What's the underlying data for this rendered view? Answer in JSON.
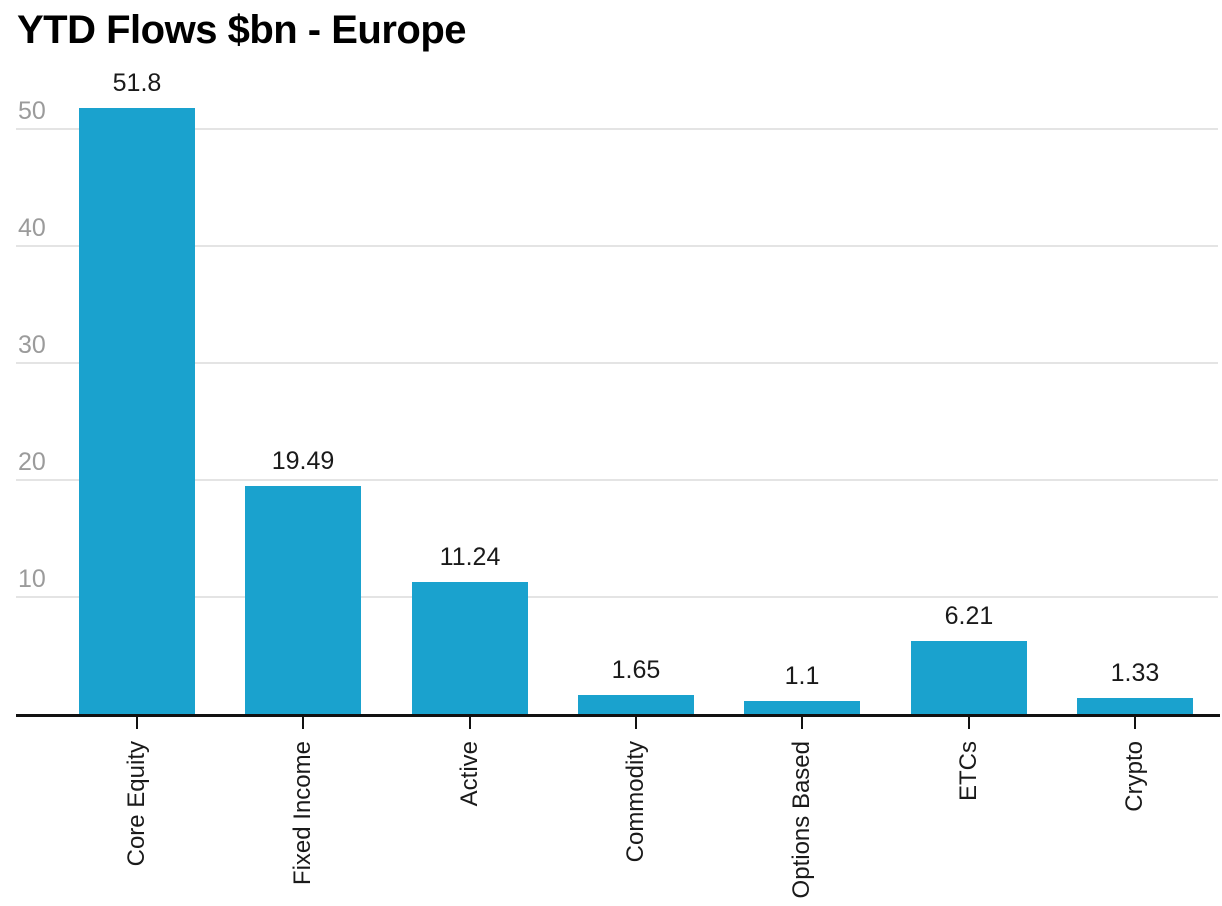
{
  "title": "YTD Flows $bn - Europe",
  "chart_data": {
    "type": "bar",
    "title": "YTD Flows $bn - Europe",
    "categories": [
      "Core Equity",
      "Fixed Income",
      "Active",
      "Commodity",
      "Options Based",
      "ETCs",
      "Crypto"
    ],
    "values": [
      51.8,
      19.49,
      11.24,
      1.65,
      1.1,
      6.21,
      1.33
    ],
    "data_labels": [
      "51.8",
      "19.49",
      "11.24",
      "1.65",
      "1.1",
      "6.21",
      "1.33"
    ],
    "xlabel": "",
    "ylabel": "",
    "yticks": [
      10,
      20,
      30,
      40,
      50
    ],
    "ylim": [
      0,
      53
    ],
    "grid": true,
    "legend": false,
    "colors": {
      "bar": "#1aa2ce",
      "gridline": "#e4e4e4",
      "y_tick_label": "#9b9b9b",
      "value_label": "#1a1a1a",
      "category_label": "#1a1a1a",
      "axis_line": "#111111",
      "background": "#ffffff",
      "title": "#000000"
    }
  }
}
